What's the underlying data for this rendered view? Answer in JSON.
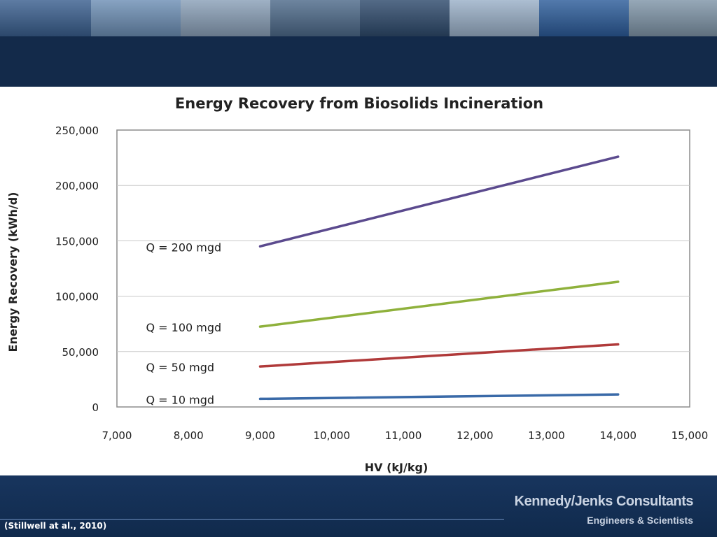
{
  "header": {
    "photo_tiles": [
      "solar-panels",
      "wind-turbines",
      "recycle-compost",
      "industrial-pipes",
      "flowers",
      "facility-building",
      "water-tank",
      "sunlit-field"
    ],
    "photo_colors": [
      "#3a5f8f",
      "#6d8fb5",
      "#8aa0b8",
      "#4d6a8a",
      "#2e4a6c",
      "#9ab0c8",
      "#2c5c9a",
      "#7f95a8"
    ]
  },
  "chart_data": {
    "type": "line",
    "title": "Energy Recovery from Biosolids Incineration",
    "xlabel": "HV (kJ/kg)",
    "ylabel": "Energy Recovery (kWh/d)",
    "xlim": [
      7000,
      15000
    ],
    "ylim": [
      0,
      250000
    ],
    "x_ticks": [
      7000,
      8000,
      9000,
      10000,
      11000,
      12000,
      13000,
      14000,
      15000
    ],
    "x_tick_labels": [
      "7,000",
      "8,000",
      "9,000",
      "10,000",
      "11,000",
      "12,000",
      "13,000",
      "14,000",
      "15,000"
    ],
    "y_ticks": [
      0,
      50000,
      100000,
      150000,
      200000,
      250000
    ],
    "y_tick_labels": [
      "0",
      "50,000",
      "100,000",
      "150,000",
      "200,000",
      "250,000"
    ],
    "grid": "horizontal",
    "legend": "inline labels",
    "series": [
      {
        "label": "Q = 200 mgd",
        "color": "#5b4a8e",
        "x": [
          9000,
          14000
        ],
        "values": [
          145000,
          226000
        ]
      },
      {
        "label": "Q = 100 mgd",
        "color": "#8fb13c",
        "x": [
          9000,
          14000
        ],
        "values": [
          72500,
          113000
        ]
      },
      {
        "label": "Q = 50 mgd",
        "color": "#b03a3a",
        "x": [
          9000,
          14000
        ],
        "values": [
          36500,
          56500
        ]
      },
      {
        "label": "Q = 10 mgd",
        "color": "#3a6aa8",
        "x": [
          9000,
          14000
        ],
        "values": [
          7300,
          11300
        ]
      }
    ]
  },
  "footer": {
    "citation": "(Stillwell at al., 2010)",
    "brand_name": "Kennedy/Jenks Consultants",
    "brand_tagline": "Engineers & Scientists"
  }
}
